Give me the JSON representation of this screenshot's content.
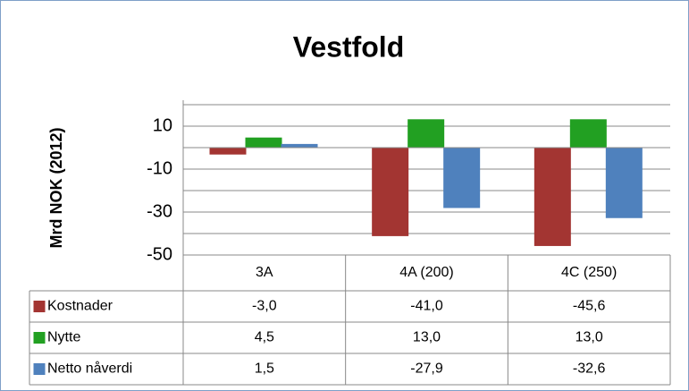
{
  "chart_data": {
    "type": "bar",
    "title": "Vestfold",
    "y_label": "Mrd NOK (2012)",
    "categories": [
      "3A",
      "4A (200)",
      "4C (250)"
    ],
    "series": [
      {
        "name": "Kostnader",
        "color": "#a33532",
        "values": [
          -3.0,
          -41.0,
          -45.6
        ],
        "value_labels": [
          "-3,0",
          "-41,0",
          "-45,6"
        ]
      },
      {
        "name": "Nytte",
        "color": "#22a022",
        "values": [
          4.5,
          13.0,
          13.0
        ],
        "value_labels": [
          "4,5",
          "13,0",
          "13,0"
        ]
      },
      {
        "name": "Netto nåverdi",
        "color": "#4f81bd",
        "values": [
          1.5,
          -27.9,
          -32.6
        ],
        "value_labels": [
          "1,5",
          "-27,9",
          "-32,6"
        ]
      }
    ],
    "ylim": [
      -50,
      20
    ],
    "yticks": [
      10,
      -10,
      -30,
      -50
    ],
    "minor_grid": [
      20,
      0,
      -20,
      -40
    ],
    "grid": true,
    "data_table": true
  }
}
